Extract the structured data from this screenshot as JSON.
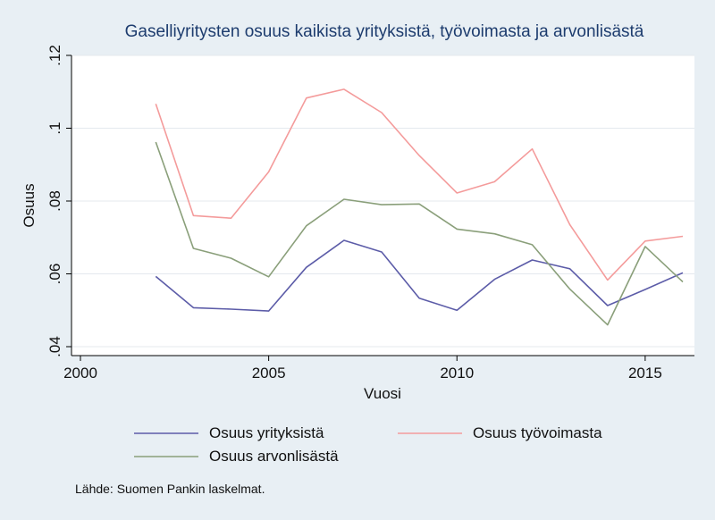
{
  "chart_data": {
    "type": "line",
    "title": "Gaselliyritysten osuus kaikista yrityksistä, työvoimasta ja arvonlisästä",
    "xlabel": "Vuosi",
    "ylabel": "Osuus",
    "xlim": [
      2000,
      2016
    ],
    "ylim": [
      0.04,
      0.12
    ],
    "xticks": [
      2000,
      2005,
      2010,
      2015
    ],
    "xtick_labels": [
      "2000",
      "2005",
      "2010",
      "2015"
    ],
    "yticks": [
      0.04,
      0.06,
      0.08,
      0.1,
      0.12
    ],
    "ytick_labels": [
      ".04",
      ".06",
      ".08",
      ".1",
      ".12"
    ],
    "grid": "horizontal",
    "legend_position": "bottom",
    "x": [
      2002,
      2003,
      2004,
      2005,
      2006,
      2007,
      2008,
      2009,
      2010,
      2011,
      2012,
      2013,
      2014,
      2015,
      2016
    ],
    "series": [
      {
        "name": "Osuus yrityksistä",
        "color": "#5c5ca8",
        "values": [
          0.0593,
          0.0507,
          0.0503,
          0.0498,
          0.0618,
          0.0692,
          0.066,
          0.0533,
          0.05,
          0.0585,
          0.0638,
          0.0614,
          0.0513,
          0.0557,
          0.0603
        ]
      },
      {
        "name": "Osuus työvoimasta",
        "color": "#f49b9b",
        "values": [
          0.1067,
          0.076,
          0.0753,
          0.088,
          0.1083,
          0.1107,
          0.1043,
          0.0925,
          0.0822,
          0.0853,
          0.0943,
          0.0735,
          0.0583,
          0.069,
          0.0703
        ]
      },
      {
        "name": "Osuus arvonlisästä",
        "color": "#8a9f7a",
        "values": [
          0.0962,
          0.067,
          0.0643,
          0.0592,
          0.0732,
          0.0805,
          0.079,
          0.0792,
          0.0723,
          0.071,
          0.068,
          0.0558,
          0.046,
          0.0675,
          0.0578
        ]
      }
    ]
  },
  "source_note": "Lähde: Suomen Pankin laskelmat."
}
